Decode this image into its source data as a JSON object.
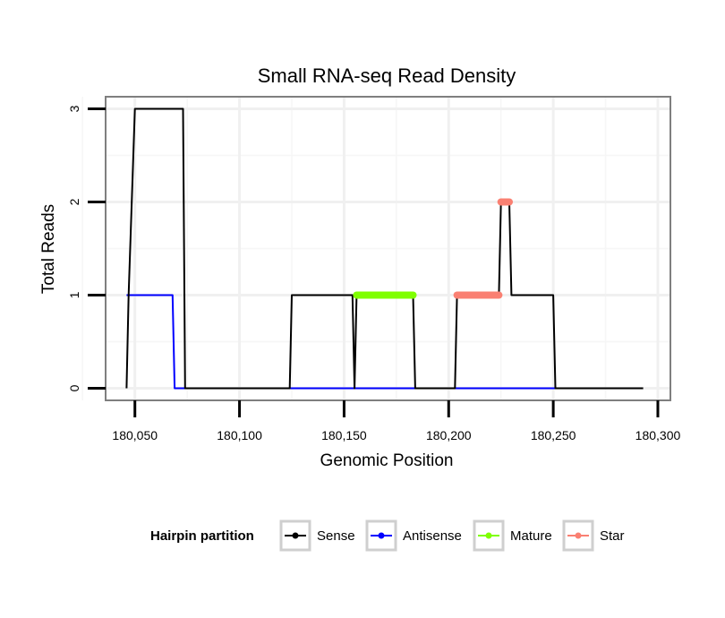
{
  "chart_data": {
    "type": "line",
    "title": "Small RNA-seq Read Density",
    "xlabel": "Genomic Position",
    "ylabel": "Total Reads",
    "xlim": [
      180036,
      180306
    ],
    "ylim": [
      -0.13,
      3.13
    ],
    "x_ticks": [
      180050,
      180100,
      180150,
      180200,
      180250,
      180300
    ],
    "x_tick_labels": [
      "180,050",
      "180,100",
      "180,150",
      "180,200",
      "180,250",
      "180,300"
    ],
    "y_ticks": [
      0,
      1,
      2,
      3
    ],
    "y_tick_labels": [
      "0",
      "1",
      "2",
      "3"
    ],
    "grid": true,
    "legend": {
      "title": "Hairpin partition",
      "position": "bottom",
      "entries": [
        "Sense",
        "Antisense",
        "Mature",
        "Star"
      ]
    },
    "series": [
      {
        "name": "Sense",
        "color": "#000000",
        "points": [
          [
            180046,
            0
          ],
          [
            180047,
            1
          ],
          [
            180050,
            3
          ],
          [
            180073,
            3
          ],
          [
            180074,
            0
          ],
          [
            180124,
            0
          ],
          [
            180125,
            1
          ],
          [
            180154,
            1
          ],
          [
            180155,
            0
          ],
          [
            180156,
            1
          ],
          [
            180183,
            1
          ],
          [
            180184,
            0
          ],
          [
            180203,
            0
          ],
          [
            180204,
            1
          ],
          [
            180224,
            1
          ],
          [
            180225,
            2
          ],
          [
            180229,
            2
          ],
          [
            180230,
            1
          ],
          [
            180250,
            1
          ],
          [
            180251,
            0
          ],
          [
            180293,
            0
          ]
        ]
      },
      {
        "name": "Antisense",
        "color": "#0000ff",
        "points": [
          [
            180046,
            1
          ],
          [
            180068,
            1
          ],
          [
            180069,
            0
          ],
          [
            180251,
            0
          ]
        ]
      },
      {
        "name": "Mature",
        "color": "#7fff00",
        "points": [
          [
            180156,
            1
          ],
          [
            180183,
            1
          ]
        ]
      },
      {
        "name": "Star",
        "color": "#fa8072",
        "segments": [
          [
            [
              180204,
              1
            ],
            [
              180224,
              1
            ]
          ],
          [
            [
              180225,
              2
            ],
            [
              180229,
              2
            ]
          ]
        ]
      }
    ]
  }
}
